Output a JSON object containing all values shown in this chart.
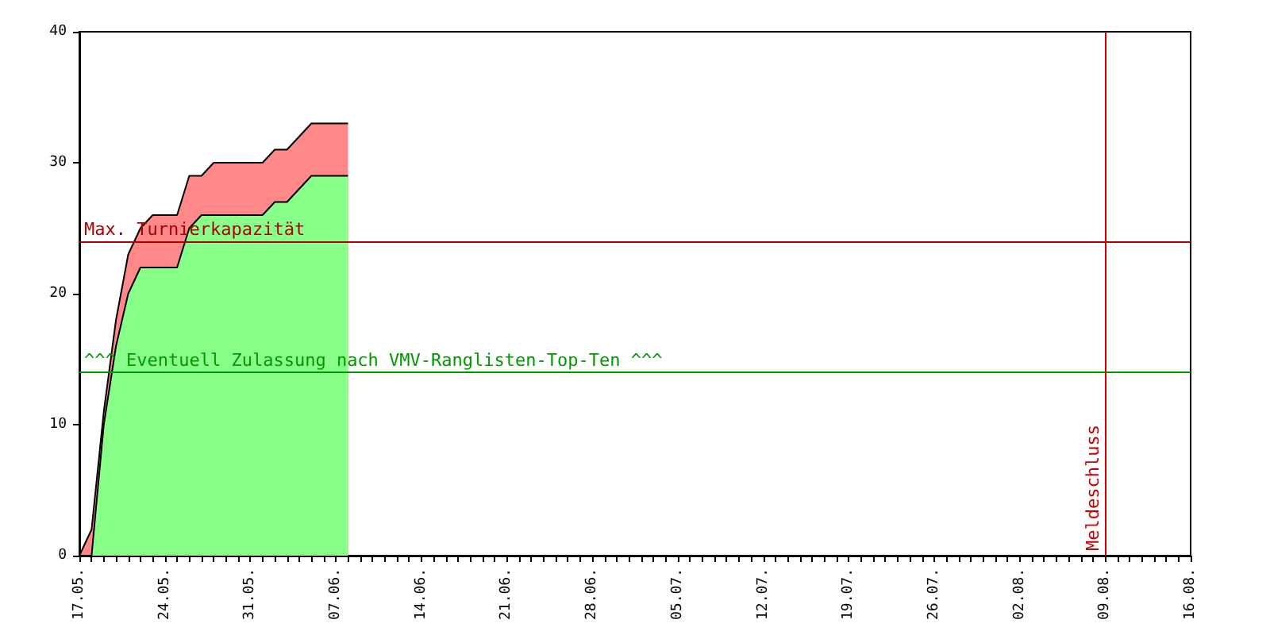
{
  "chart_data": {
    "type": "area",
    "stacked": true,
    "marker": "none",
    "grid": false,
    "x": [
      "--05-17",
      "--05-18",
      "--05-19",
      "--05-20",
      "--05-21",
      "--05-22",
      "--05-23",
      "--05-24",
      "--05-25",
      "--05-26",
      "--05-27",
      "--05-28",
      "--05-29",
      "--05-30",
      "--05-31",
      "--06-01",
      "--06-02",
      "--06-03",
      "--06-04",
      "--06-05",
      "--06-06",
      "--06-07",
      "--06-08"
    ],
    "series": [
      {
        "color": "#88ff88",
        "values": [
          0,
          0,
          10,
          16,
          20,
          22,
          22,
          22,
          22,
          25,
          26,
          26,
          26,
          26,
          26,
          26,
          27,
          27,
          28,
          29,
          29,
          29,
          29
        ]
      },
      {
        "color": "#ff8888",
        "values": [
          0,
          2,
          1,
          2,
          3,
          3,
          4,
          4,
          4,
          4,
          3,
          4,
          4,
          4,
          4,
          4,
          4,
          4,
          4,
          4,
          4,
          4,
          4
        ]
      }
    ],
    "xlim": [
      "--05-17",
      "--08-16"
    ],
    "xticks": [
      {
        "value": "--05-17",
        "label": "17.05."
      },
      {
        "value": "--05-24",
        "label": "24.05."
      },
      {
        "value": "--05-31",
        "label": "31.05."
      },
      {
        "value": "--06-07",
        "label": "07.06."
      },
      {
        "value": "--06-14",
        "label": "14.06."
      },
      {
        "value": "--06-21",
        "label": "21.06."
      },
      {
        "value": "--06-28",
        "label": "28.06."
      },
      {
        "value": "--07-05",
        "label": "05.07."
      },
      {
        "value": "--07-12",
        "label": "12.07."
      },
      {
        "value": "--07-19",
        "label": "19.07."
      },
      {
        "value": "--07-26",
        "label": "26.07."
      },
      {
        "value": "--08-02",
        "label": "02.08."
      },
      {
        "value": "--08-09",
        "label": "09.08."
      },
      {
        "value": "--08-16",
        "label": "16.08."
      }
    ],
    "ylim": [
      0,
      40
    ],
    "yticks": [
      0,
      10,
      20,
      30,
      40
    ],
    "ref_lines": [
      {
        "axis": "y",
        "value": 24,
        "label": "Max. Turnierkapazität",
        "color": "#aa0000"
      },
      {
        "axis": "y",
        "value": 14,
        "label": "^^^ Eventuell Zulassung nach VMV-Ranglisten-Top-Ten ^^^",
        "color": "#009900"
      },
      {
        "axis": "x",
        "value": "--08-09",
        "label": "Meldeschluss",
        "color": "#cc0000"
      }
    ]
  }
}
